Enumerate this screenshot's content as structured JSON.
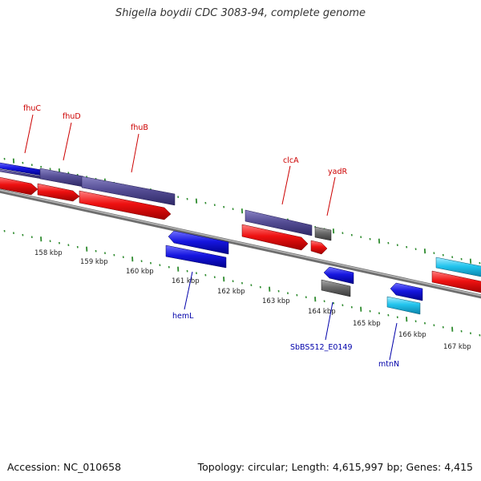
{
  "title": "Shigella boydii CDC 3083-94, complete genome",
  "accession": "Accession: NC_010658",
  "summary": "Topology: circular; Length: 4,615,997 bp; Genes: 4,415",
  "colors": {
    "background": "#ffffff",
    "backbone": "#8c8c8c",
    "tick": "#2e8b2e",
    "forward_label": "#cc0000",
    "reverse_label": "#0000aa",
    "red_feature": "#ee1111",
    "blue_feature": "#1616e0",
    "slate_feature": "#564f96",
    "gray_feature": "#6a6a6a",
    "cyan_feature": "#22c4ee"
  },
  "scale_labels": [
    "158 kbp",
    "159 kbp",
    "160 kbp",
    "161 kbp",
    "162 kbp",
    "163 kbp",
    "164 kbp",
    "165 kbp",
    "166 kbp",
    "167 kbp"
  ],
  "genes_forward": [
    "fhuC",
    "fhuD",
    "fhuB",
    "clcA",
    "yadR"
  ],
  "genes_reverse": [
    "hemL",
    "SbBS512_E0149",
    "mtnN"
  ]
}
